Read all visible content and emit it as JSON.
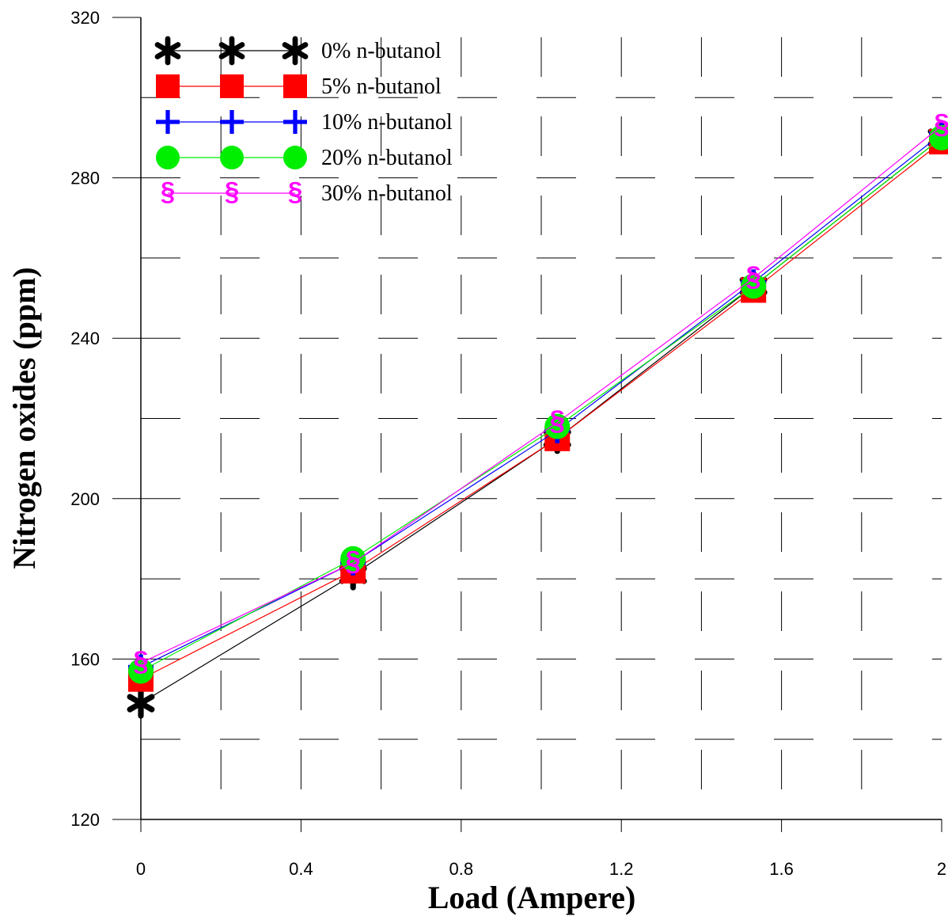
{
  "chart_data": {
    "type": "line",
    "title": "",
    "xlabel": "Load (Ampere)",
    "ylabel": "Nitrogen oxides (ppm)",
    "xlim": [
      0,
      2
    ],
    "ylim": [
      120,
      320
    ],
    "x_ticks": [
      0,
      0.4,
      0.8,
      1.2,
      1.6,
      2
    ],
    "x_tick_labels": [
      "0",
      "0.4",
      "0.8",
      "1.2",
      "1.6",
      "2"
    ],
    "y_ticks": [
      120,
      160,
      200,
      240,
      280,
      320
    ],
    "y_tick_labels": [
      "120",
      "160",
      "200",
      "240",
      "280",
      "320"
    ],
    "grid": true,
    "legend_position": "top-left",
    "x": [
      0,
      0.53,
      1.04,
      1.53,
      2.0
    ],
    "series": [
      {
        "name": "0% n-butanol",
        "color": "#000000",
        "marker": "asterisk",
        "values": [
          149,
          181,
          215,
          253,
          290
        ]
      },
      {
        "name": "5% n-butanol",
        "color": "#ff0000",
        "marker": "square",
        "values": [
          155,
          182,
          215,
          252,
          289
        ]
      },
      {
        "name": "10% n-butanol",
        "color": "#0000ff",
        "marker": "plus",
        "values": [
          158,
          184,
          217,
          254,
          291
        ]
      },
      {
        "name": "20% n-butanol",
        "color": "#00ee00",
        "marker": "circle",
        "values": [
          157,
          185,
          218,
          253,
          290
        ]
      },
      {
        "name": "30% n-butanol",
        "color": "#ff00ff",
        "marker": "section",
        "values": [
          159,
          184,
          219,
          255,
          293
        ]
      }
    ]
  }
}
